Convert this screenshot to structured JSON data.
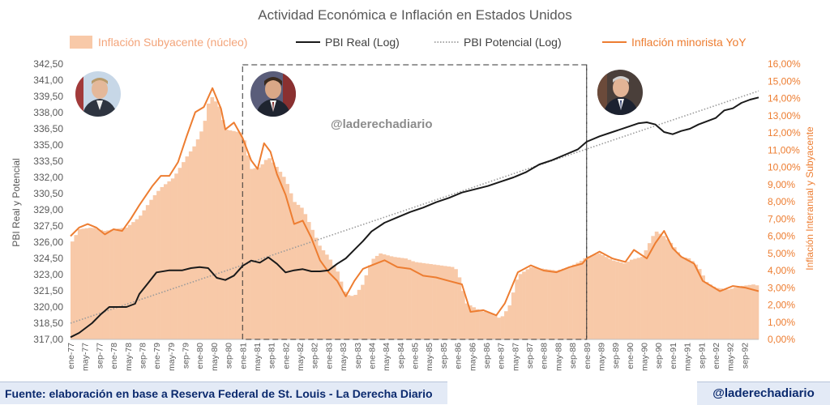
{
  "colors": {
    "bars": "#f8c9a8",
    "real": "#1a1a1a",
    "potential": "#9a9a9a",
    "cpi": "#ed7d31",
    "axis_text": "#595959",
    "right_axis_text": "#ed7d31",
    "title": "#595959"
  },
  "footer": {
    "source": "Fuente: elaboración en base a Reserva Federal de St. Louis - La Derecha Diario",
    "handle": "@laderechadiario"
  },
  "chart_data": {
    "type": "bar+line",
    "title": "Actividad Económica e Inflación en Estados Unidos",
    "watermark": "@laderechadiario",
    "legend": {
      "placement": "top",
      "entries": [
        "Inflación Subyacente (núcleo)",
        "PBI Real (Log)",
        "PBI Potencial (Log)",
        "Inflación minorista YoY"
      ]
    },
    "y_left": {
      "label": "PBI Real y Potencial",
      "min": 317.0,
      "max": 342.5,
      "step": 1.5,
      "tick_labels": [
        "342,50",
        "341,00",
        "339,50",
        "338,00",
        "336,50",
        "335,00",
        "333,50",
        "332,00",
        "330,50",
        "329,00",
        "327,50",
        "326,00",
        "324,50",
        "323,00",
        "321,50",
        "320,00",
        "318,50",
        "317,00"
      ]
    },
    "y_right": {
      "label": "Inflación Interanual y Subyacente",
      "min": 0,
      "max": 16,
      "step": 1,
      "tick_labels": [
        "16,00%",
        "15,00%",
        "14,00%",
        "13,00%",
        "12,00%",
        "11,00%",
        "10,00%",
        "9,00%",
        "8,00%",
        "7,00%",
        "6,00%",
        "5,00%",
        "4,00%",
        "3,00%",
        "2,00%",
        "1,00%",
        "0,00%"
      ]
    },
    "x_tick_labels": [
      "ene-77",
      "may-77",
      "sep-77",
      "ene-78",
      "may-78",
      "sep-78",
      "ene-79",
      "may-79",
      "sep-79",
      "ene-80",
      "may-80",
      "sep-80",
      "ene-81",
      "may-81",
      "sep-81",
      "ene-82",
      "may-82",
      "sep-82",
      "ene-83",
      "may-83",
      "sep-83",
      "ene-84",
      "may-84",
      "sep-84",
      "ene-85",
      "may-85",
      "sep-85",
      "ene-86",
      "may-86",
      "sep-86",
      "ene-87",
      "may-87",
      "sep-87",
      "ene-88",
      "may-88",
      "sep-88",
      "ene-89",
      "may-89",
      "sep-89",
      "ene-90",
      "may-90",
      "sep-90",
      "ene-91",
      "may-91",
      "sep-91",
      "ene-92",
      "may-92",
      "sep-92"
    ],
    "x_time_range": [
      1977.0,
      1993.0
    ],
    "periods": [
      {
        "name": "carter",
        "start": 1977.0,
        "end": 1981.0
      },
      {
        "name": "reagan",
        "start": 1981.0,
        "end": 1989.0
      },
      {
        "name": "bush",
        "start": 1989.0,
        "end": 1993.0
      }
    ],
    "series": [
      {
        "name": "Inflación Subyacente (núcleo)",
        "axis": "right",
        "kind": "bar",
        "points": [
          [
            1977.0,
            5.5
          ],
          [
            1977.2,
            6.4
          ],
          [
            1977.5,
            6.5
          ],
          [
            1977.8,
            6.3
          ],
          [
            1978.0,
            6.4
          ],
          [
            1978.3,
            6.5
          ],
          [
            1978.6,
            7.1
          ],
          [
            1978.9,
            8.2
          ],
          [
            1979.1,
            8.8
          ],
          [
            1979.4,
            9.4
          ],
          [
            1979.7,
            10.6
          ],
          [
            1979.9,
            11.3
          ],
          [
            1980.1,
            12.4
          ],
          [
            1980.25,
            14.2
          ],
          [
            1980.45,
            13.6
          ],
          [
            1980.6,
            12.2
          ],
          [
            1980.8,
            12.1
          ],
          [
            1981.0,
            12.0
          ],
          [
            1981.2,
            9.9
          ],
          [
            1981.4,
            10.0
          ],
          [
            1981.6,
            10.6
          ],
          [
            1981.8,
            10.0
          ],
          [
            1982.0,
            9.3
          ],
          [
            1982.2,
            8.0
          ],
          [
            1982.4,
            7.6
          ],
          [
            1982.6,
            6.5
          ],
          [
            1982.8,
            5.4
          ],
          [
            1983.0,
            4.8
          ],
          [
            1983.2,
            4.0
          ],
          [
            1983.4,
            2.6
          ],
          [
            1983.6,
            2.5
          ],
          [
            1983.8,
            3.2
          ],
          [
            1984.0,
            4.6
          ],
          [
            1984.2,
            5.0
          ],
          [
            1984.5,
            4.8
          ],
          [
            1984.8,
            4.7
          ],
          [
            1985.0,
            4.5
          ],
          [
            1985.3,
            4.4
          ],
          [
            1985.6,
            4.3
          ],
          [
            1985.9,
            4.2
          ],
          [
            1986.0,
            4.0
          ],
          [
            1986.2,
            2.1
          ],
          [
            1986.5,
            1.7
          ],
          [
            1986.8,
            1.5
          ],
          [
            1987.0,
            1.2
          ],
          [
            1987.2,
            1.9
          ],
          [
            1987.4,
            3.7
          ],
          [
            1987.7,
            4.2
          ],
          [
            1988.0,
            4.1
          ],
          [
            1988.3,
            4.0
          ],
          [
            1988.6,
            4.2
          ],
          [
            1988.9,
            4.6
          ],
          [
            1989.0,
            4.8
          ],
          [
            1989.3,
            5.0
          ],
          [
            1989.6,
            4.6
          ],
          [
            1989.9,
            4.4
          ],
          [
            1990.0,
            4.6
          ],
          [
            1990.3,
            4.8
          ],
          [
            1990.6,
            6.3
          ],
          [
            1990.8,
            6.0
          ],
          [
            1991.0,
            5.5
          ],
          [
            1991.2,
            4.8
          ],
          [
            1991.4,
            4.7
          ],
          [
            1991.6,
            4.2
          ],
          [
            1991.8,
            3.3
          ],
          [
            1992.0,
            3.0
          ],
          [
            1992.3,
            2.9
          ],
          [
            1992.6,
            3.1
          ],
          [
            1992.9,
            3.2
          ],
          [
            1993.0,
            3.1
          ]
        ]
      },
      {
        "name": "PBI Real (Log)",
        "axis": "left",
        "kind": "line",
        "points": [
          [
            1977.0,
            317.2
          ],
          [
            1977.2,
            317.6
          ],
          [
            1977.5,
            318.5
          ],
          [
            1977.7,
            319.3
          ],
          [
            1977.9,
            320.0
          ],
          [
            1978.3,
            320.0
          ],
          [
            1978.5,
            320.3
          ],
          [
            1978.6,
            321.2
          ],
          [
            1978.8,
            322.2
          ],
          [
            1979.0,
            323.2
          ],
          [
            1979.3,
            323.4
          ],
          [
            1979.6,
            323.4
          ],
          [
            1979.8,
            323.6
          ],
          [
            1980.0,
            323.7
          ],
          [
            1980.2,
            323.6
          ],
          [
            1980.4,
            322.7
          ],
          [
            1980.6,
            322.5
          ],
          [
            1980.8,
            322.9
          ],
          [
            1981.0,
            323.8
          ],
          [
            1981.2,
            324.3
          ],
          [
            1981.4,
            324.1
          ],
          [
            1981.6,
            324.6
          ],
          [
            1981.8,
            324.0
          ],
          [
            1982.0,
            323.2
          ],
          [
            1982.2,
            323.4
          ],
          [
            1982.4,
            323.5
          ],
          [
            1982.6,
            323.3
          ],
          [
            1982.8,
            323.3
          ],
          [
            1983.0,
            323.4
          ],
          [
            1983.2,
            324.0
          ],
          [
            1983.4,
            324.5
          ],
          [
            1983.6,
            325.3
          ],
          [
            1983.8,
            326.1
          ],
          [
            1984.0,
            327.0
          ],
          [
            1984.3,
            327.8
          ],
          [
            1984.6,
            328.3
          ],
          [
            1984.9,
            328.8
          ],
          [
            1985.2,
            329.2
          ],
          [
            1985.5,
            329.7
          ],
          [
            1985.8,
            330.1
          ],
          [
            1986.1,
            330.6
          ],
          [
            1986.4,
            330.9
          ],
          [
            1986.7,
            331.2
          ],
          [
            1987.0,
            331.6
          ],
          [
            1987.3,
            332.0
          ],
          [
            1987.6,
            332.5
          ],
          [
            1987.9,
            333.2
          ],
          [
            1988.2,
            333.6
          ],
          [
            1988.5,
            334.1
          ],
          [
            1988.8,
            334.6
          ],
          [
            1989.0,
            335.3
          ],
          [
            1989.3,
            335.8
          ],
          [
            1989.6,
            336.2
          ],
          [
            1989.9,
            336.6
          ],
          [
            1990.2,
            337.0
          ],
          [
            1990.4,
            337.1
          ],
          [
            1990.6,
            336.9
          ],
          [
            1990.8,
            336.2
          ],
          [
            1991.0,
            336.0
          ],
          [
            1991.2,
            336.3
          ],
          [
            1991.4,
            336.5
          ],
          [
            1991.6,
            336.9
          ],
          [
            1991.8,
            337.2
          ],
          [
            1992.0,
            337.5
          ],
          [
            1992.2,
            338.2
          ],
          [
            1992.4,
            338.4
          ],
          [
            1992.6,
            338.9
          ],
          [
            1992.8,
            339.2
          ],
          [
            1993.0,
            339.4
          ]
        ]
      },
      {
        "name": "PBI Potencial (Log)",
        "axis": "left",
        "kind": "dotted-line",
        "points": [
          [
            1977.0,
            318.5
          ],
          [
            1993.0,
            340.0
          ]
        ]
      },
      {
        "name": "Inflación minorista YoY",
        "axis": "right",
        "kind": "line",
        "points": [
          [
            1977.0,
            6.0
          ],
          [
            1977.2,
            6.5
          ],
          [
            1977.4,
            6.7
          ],
          [
            1977.6,
            6.5
          ],
          [
            1977.8,
            6.1
          ],
          [
            1978.0,
            6.4
          ],
          [
            1978.2,
            6.3
          ],
          [
            1978.4,
            7.0
          ],
          [
            1978.6,
            7.8
          ],
          [
            1978.9,
            8.9
          ],
          [
            1979.1,
            9.5
          ],
          [
            1979.3,
            9.5
          ],
          [
            1979.5,
            10.3
          ],
          [
            1979.7,
            11.8
          ],
          [
            1979.9,
            13.2
          ],
          [
            1980.1,
            13.5
          ],
          [
            1980.3,
            14.6
          ],
          [
            1980.5,
            13.4
          ],
          [
            1980.6,
            12.2
          ],
          [
            1980.8,
            12.6
          ],
          [
            1981.0,
            11.7
          ],
          [
            1981.2,
            10.4
          ],
          [
            1981.35,
            9.9
          ],
          [
            1981.5,
            11.4
          ],
          [
            1981.65,
            10.9
          ],
          [
            1981.8,
            9.6
          ],
          [
            1982.0,
            8.4
          ],
          [
            1982.2,
            6.7
          ],
          [
            1982.4,
            6.9
          ],
          [
            1982.6,
            5.9
          ],
          [
            1982.8,
            4.6
          ],
          [
            1983.0,
            3.9
          ],
          [
            1983.2,
            3.4
          ],
          [
            1983.4,
            2.5
          ],
          [
            1983.6,
            3.4
          ],
          [
            1983.8,
            4.1
          ],
          [
            1984.0,
            4.3
          ],
          [
            1984.3,
            4.6
          ],
          [
            1984.6,
            4.2
          ],
          [
            1984.9,
            4.1
          ],
          [
            1985.2,
            3.7
          ],
          [
            1985.5,
            3.6
          ],
          [
            1985.8,
            3.4
          ],
          [
            1986.1,
            3.2
          ],
          [
            1986.3,
            1.6
          ],
          [
            1986.6,
            1.7
          ],
          [
            1986.9,
            1.4
          ],
          [
            1987.1,
            2.1
          ],
          [
            1987.4,
            3.9
          ],
          [
            1987.7,
            4.3
          ],
          [
            1988.0,
            4.0
          ],
          [
            1988.3,
            3.9
          ],
          [
            1988.6,
            4.2
          ],
          [
            1988.9,
            4.4
          ],
          [
            1989.0,
            4.7
          ],
          [
            1989.3,
            5.1
          ],
          [
            1989.6,
            4.7
          ],
          [
            1989.9,
            4.5
          ],
          [
            1990.1,
            5.2
          ],
          [
            1990.4,
            4.7
          ],
          [
            1990.6,
            5.6
          ],
          [
            1990.8,
            6.3
          ],
          [
            1991.0,
            5.3
          ],
          [
            1991.2,
            4.8
          ],
          [
            1991.5,
            4.4
          ],
          [
            1991.7,
            3.4
          ],
          [
            1991.9,
            3.1
          ],
          [
            1992.1,
            2.8
          ],
          [
            1992.4,
            3.1
          ],
          [
            1992.7,
            3.0
          ],
          [
            1993.0,
            2.8
          ]
        ]
      }
    ]
  }
}
